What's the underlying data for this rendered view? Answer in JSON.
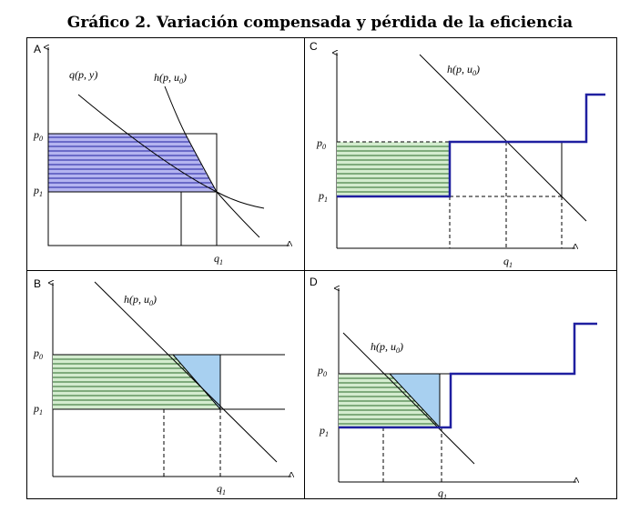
{
  "title": "Gráfico 2. Variación compensada y pérdida de la eficiencia",
  "colors": {
    "blue_hatch_fill": "#B4B4F0",
    "green_hatch_fill": "#D4ECCF",
    "triangle_fill": "#A8D0F0",
    "thick_line": "#1F1FA0",
    "line": "#000000"
  },
  "panels": {
    "A": {
      "letter": "A",
      "curve_marshallian": {
        "name": "q",
        "args": "(p, y)"
      },
      "curve_hicksian": {
        "name": "h",
        "args": "(p, u",
        "sub": "0",
        "close": ")"
      },
      "p0": {
        "sym": "p",
        "sub": "0"
      },
      "p1": {
        "sym": "p",
        "sub": "1"
      },
      "q1": {
        "sym": "q",
        "sub": "1"
      }
    },
    "B": {
      "letter": "B",
      "curve_hicksian": {
        "name": "h",
        "args": "(p, u",
        "sub": "0",
        "close": ")"
      },
      "p0": {
        "sym": "p",
        "sub": "0"
      },
      "p1": {
        "sym": "p",
        "sub": "1"
      },
      "q1": {
        "sym": "q",
        "sub": "1"
      }
    },
    "C": {
      "letter": "C",
      "curve_hicksian": {
        "name": "h",
        "args": "(p, u",
        "sub": "0",
        "close": ")"
      },
      "p0": {
        "sym": "p",
        "sub": "0"
      },
      "p1": {
        "sym": "p",
        "sub": "1"
      },
      "q1": {
        "sym": "q",
        "sub": "1"
      }
    },
    "D": {
      "letter": "D",
      "curve_hicksian": {
        "name": "h",
        "args": "(p, u",
        "sub": "0",
        "close": ")"
      },
      "p0": {
        "sym": "p",
        "sub": "0"
      },
      "p1": {
        "sym": "p",
        "sub": "1"
      },
      "q1": {
        "sym": "q",
        "sub": "1"
      }
    }
  }
}
